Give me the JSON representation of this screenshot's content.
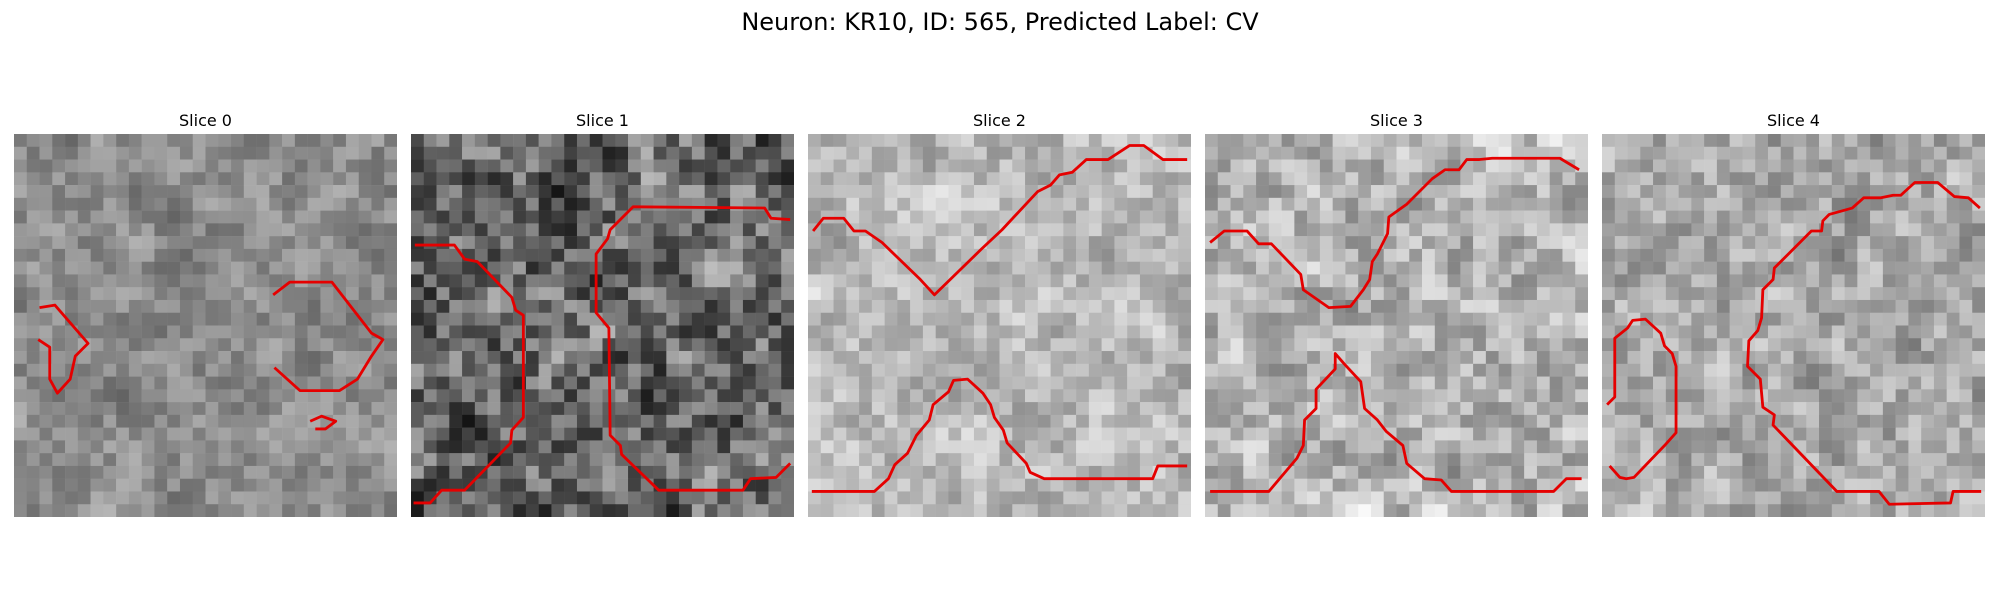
{
  "figure": {
    "title": "Neuron: KR10, ID: 565, Predicted Label: CV"
  },
  "panels": [
    {
      "title": "Slice 0",
      "grid_size": 30,
      "mean_gray": 140,
      "contrast": 35,
      "contour_color": "#e50000",
      "contours": [
        [
          [
            2.0,
            13.6
          ],
          [
            3.2,
            13.4
          ],
          [
            5.8,
            16.4
          ],
          [
            4.8,
            17.4
          ],
          [
            4.4,
            19.2
          ],
          [
            3.4,
            20.3
          ],
          [
            2.8,
            19.2
          ],
          [
            2.8,
            16.7
          ],
          [
            1.9,
            16.1
          ]
        ],
        [
          [
            20.3,
            12.6
          ],
          [
            21.6,
            11.6
          ],
          [
            24.9,
            11.6
          ],
          [
            28.0,
            15.6
          ],
          [
            28.9,
            16.1
          ],
          [
            28.0,
            17.4
          ],
          [
            26.9,
            19.2
          ],
          [
            25.5,
            20.1
          ],
          [
            22.4,
            20.1
          ],
          [
            20.4,
            18.3
          ]
        ],
        [
          [
            23.2,
            22.5
          ],
          [
            24.1,
            22.1
          ],
          [
            25.2,
            22.5
          ],
          [
            24.4,
            23.1
          ],
          [
            23.6,
            23.1
          ]
        ]
      ]
    },
    {
      "title": "Slice 1",
      "grid_size": 30,
      "mean_gray": 105,
      "contrast": 75,
      "contour_color": "#e50000",
      "contours": [
        [
          [
            0.3,
            8.7
          ],
          [
            3.4,
            8.7
          ],
          [
            4.2,
            9.8
          ],
          [
            5.2,
            10.0
          ],
          [
            7.9,
            12.8
          ],
          [
            8.2,
            13.8
          ],
          [
            8.8,
            14.2
          ],
          [
            8.8,
            22.2
          ],
          [
            7.9,
            23.2
          ],
          [
            7.8,
            24.2
          ],
          [
            4.2,
            27.9
          ],
          [
            2.4,
            27.9
          ],
          [
            1.5,
            28.9
          ],
          [
            0.2,
            28.9
          ]
        ],
        [
          [
            29.7,
            6.7
          ],
          [
            28.2,
            6.6
          ],
          [
            27.7,
            5.8
          ],
          [
            17.4,
            5.7
          ],
          [
            15.6,
            7.5
          ],
          [
            15.4,
            8.2
          ],
          [
            14.5,
            9.4
          ],
          [
            14.5,
            14.0
          ],
          [
            15.5,
            15.2
          ],
          [
            15.6,
            23.6
          ],
          [
            16.4,
            24.4
          ],
          [
            16.5,
            25.1
          ],
          [
            19.4,
            27.9
          ],
          [
            26.0,
            27.9
          ],
          [
            26.6,
            27.0
          ],
          [
            28.6,
            26.9
          ],
          [
            29.7,
            25.8
          ]
        ]
      ]
    },
    {
      "title": "Slice 2",
      "grid_size": 30,
      "mean_gray": 185,
      "contrast": 40,
      "contour_color": "#e50000",
      "contours": [
        [
          [
            0.4,
            7.6
          ],
          [
            1.2,
            6.6
          ],
          [
            2.8,
            6.6
          ],
          [
            3.6,
            7.6
          ],
          [
            4.5,
            7.6
          ],
          [
            5.8,
            8.5
          ],
          [
            8.8,
            11.4
          ],
          [
            9.9,
            12.6
          ],
          [
            13.6,
            9.0
          ],
          [
            15.2,
            7.5
          ],
          [
            18.0,
            4.5
          ],
          [
            19.0,
            4.0
          ],
          [
            19.7,
            3.2
          ],
          [
            20.7,
            3.0
          ],
          [
            21.8,
            2.0
          ],
          [
            23.5,
            2.0
          ],
          [
            25.2,
            0.9
          ],
          [
            26.3,
            0.9
          ],
          [
            27.8,
            2.0
          ],
          [
            29.7,
            2.0
          ]
        ],
        [
          [
            0.3,
            28.0
          ],
          [
            5.2,
            28.0
          ],
          [
            6.3,
            27.0
          ],
          [
            6.8,
            25.9
          ],
          [
            7.8,
            25.0
          ],
          [
            8.5,
            23.6
          ],
          [
            9.5,
            22.4
          ],
          [
            9.8,
            21.2
          ],
          [
            11.0,
            20.2
          ],
          [
            11.4,
            19.3
          ],
          [
            12.5,
            19.2
          ],
          [
            13.7,
            20.3
          ],
          [
            14.3,
            21.2
          ],
          [
            14.6,
            22.2
          ],
          [
            15.3,
            23.2
          ],
          [
            15.6,
            24.2
          ],
          [
            17.1,
            25.8
          ],
          [
            17.4,
            26.5
          ],
          [
            18.5,
            27.0
          ],
          [
            27.0,
            27.0
          ],
          [
            27.4,
            26.0
          ],
          [
            29.7,
            26.0
          ]
        ]
      ]
    },
    {
      "title": "Slice 3",
      "grid_size": 30,
      "mean_gray": 180,
      "contrast": 50,
      "contour_color": "#e50000",
      "contours": [
        [
          [
            0.4,
            8.5
          ],
          [
            1.5,
            7.6
          ],
          [
            3.3,
            7.6
          ],
          [
            4.2,
            8.6
          ],
          [
            5.2,
            8.6
          ],
          [
            7.5,
            11.0
          ],
          [
            7.7,
            12.2
          ],
          [
            9.7,
            13.6
          ],
          [
            11.4,
            13.5
          ],
          [
            12.4,
            12.2
          ],
          [
            12.9,
            11.4
          ],
          [
            13.1,
            10.0
          ],
          [
            13.5,
            9.4
          ],
          [
            14.3,
            7.8
          ],
          [
            14.4,
            6.5
          ],
          [
            15.8,
            5.5
          ],
          [
            17.8,
            3.5
          ],
          [
            18.8,
            2.8
          ],
          [
            19.9,
            2.8
          ],
          [
            20.5,
            2.0
          ],
          [
            21.5,
            2.0
          ],
          [
            22.5,
            1.9
          ],
          [
            27.8,
            1.9
          ],
          [
            29.3,
            2.8
          ]
        ],
        [
          [
            0.4,
            28.0
          ],
          [
            5.0,
            28.0
          ],
          [
            7.2,
            25.4
          ],
          [
            7.7,
            24.4
          ],
          [
            7.8,
            22.4
          ],
          [
            8.7,
            21.5
          ],
          [
            8.7,
            20.0
          ],
          [
            10.2,
            18.4
          ],
          [
            10.2,
            17.2
          ],
          [
            10.9,
            18.0
          ],
          [
            12.2,
            19.4
          ],
          [
            12.5,
            21.5
          ],
          [
            13.5,
            22.4
          ],
          [
            14.2,
            23.3
          ],
          [
            15.5,
            24.4
          ],
          [
            15.8,
            25.8
          ],
          [
            17.2,
            27.0
          ],
          [
            18.5,
            27.1
          ],
          [
            19.3,
            28.0
          ],
          [
            27.3,
            28.0
          ],
          [
            28.3,
            27.0
          ],
          [
            29.5,
            27.0
          ]
        ]
      ]
    },
    {
      "title": "Slice 4",
      "grid_size": 30,
      "mean_gray": 170,
      "contrast": 45,
      "contour_color": "#e50000",
      "contours": [
        [
          [
            0.4,
            21.2
          ],
          [
            1.0,
            20.6
          ],
          [
            1.0,
            16.0
          ],
          [
            2.0,
            15.2
          ],
          [
            2.4,
            14.6
          ],
          [
            3.4,
            14.5
          ],
          [
            4.6,
            15.6
          ],
          [
            4.9,
            16.6
          ],
          [
            5.5,
            17.2
          ],
          [
            5.8,
            18.2
          ],
          [
            5.8,
            23.4
          ],
          [
            4.9,
            24.4
          ],
          [
            2.5,
            26.9
          ],
          [
            1.9,
            27.0
          ],
          [
            1.4,
            26.9
          ],
          [
            0.6,
            26.0
          ]
        ],
        [
          [
            29.6,
            5.8
          ],
          [
            28.7,
            5.0
          ],
          [
            27.6,
            4.9
          ],
          [
            26.3,
            3.8
          ],
          [
            24.5,
            3.8
          ],
          [
            23.4,
            4.8
          ],
          [
            22.8,
            4.8
          ],
          [
            21.8,
            5.0
          ],
          [
            20.5,
            5.0
          ],
          [
            19.6,
            5.8
          ],
          [
            17.8,
            6.3
          ],
          [
            17.3,
            6.8
          ],
          [
            17.2,
            7.6
          ],
          [
            16.4,
            7.6
          ],
          [
            13.5,
            10.5
          ],
          [
            13.4,
            11.4
          ],
          [
            12.6,
            12.2
          ],
          [
            12.5,
            14.4
          ],
          [
            12.2,
            15.4
          ],
          [
            11.5,
            16.2
          ],
          [
            11.4,
            18.2
          ],
          [
            12.4,
            19.2
          ],
          [
            12.6,
            21.4
          ],
          [
            13.5,
            22.0
          ],
          [
            13.4,
            22.8
          ],
          [
            18.4,
            28.0
          ],
          [
            21.7,
            28.0
          ],
          [
            22.5,
            29.0
          ],
          [
            27.3,
            28.9
          ],
          [
            27.5,
            28.0
          ],
          [
            29.7,
            28.0
          ]
        ]
      ]
    }
  ]
}
